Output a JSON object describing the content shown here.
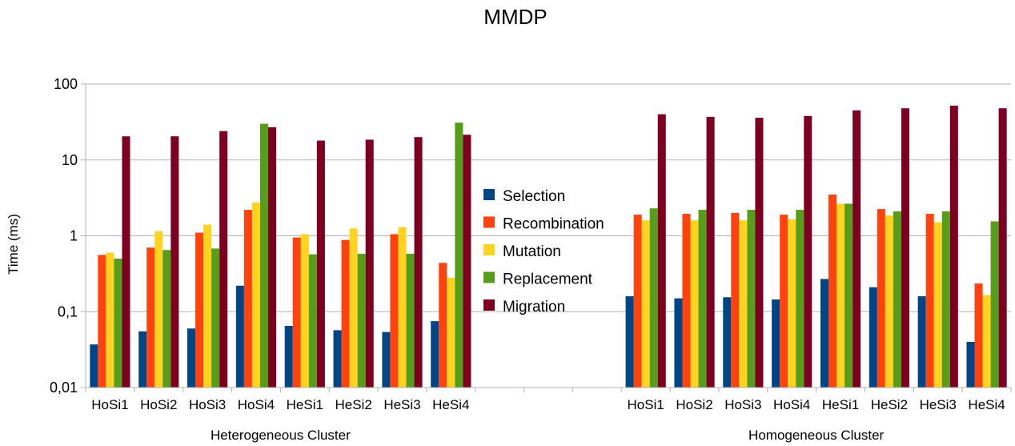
{
  "chart_data": {
    "type": "bar",
    "title": "MMDP",
    "ylabel": "Time (ms)",
    "xlabel": "",
    "y_scale": "log",
    "ylim": [
      0.01,
      100
    ],
    "y_ticks": [
      "0,01",
      "0,1",
      "1",
      "10",
      "100"
    ],
    "grid": "horizontal",
    "legend_position": "center",
    "groups": [
      {
        "label": "Heterogeneous Cluster",
        "categories": [
          "HoSi1",
          "HoSi2",
          "HoSi3",
          "HoSi4",
          "HeSi1",
          "HeSi2",
          "HeSi3",
          "HeSi4"
        ]
      },
      {
        "label": "Homogeneous Cluster",
        "categories": [
          "HoSi1",
          "HoSi2",
          "HoSi3",
          "HoSi4",
          "HeSi1",
          "HeSi2",
          "HeSi3",
          "HeSi4"
        ]
      }
    ],
    "series": [
      {
        "name": "Selection",
        "color": "#004586",
        "values": [
          0.037,
          0.055,
          0.06,
          0.22,
          0.065,
          0.057,
          0.054,
          0.075,
          0.16,
          0.15,
          0.155,
          0.145,
          0.27,
          0.21,
          0.16,
          0.04
        ]
      },
      {
        "name": "Recombination",
        "color": "#ff420e",
        "values": [
          0.56,
          0.7,
          1.1,
          2.2,
          0.95,
          0.88,
          1.05,
          0.44,
          1.9,
          1.95,
          2.0,
          1.9,
          3.5,
          2.25,
          1.95,
          0.235
        ]
      },
      {
        "name": "Mutation",
        "color": "#ffd320",
        "values": [
          0.6,
          1.15,
          1.4,
          2.75,
          1.05,
          1.25,
          1.3,
          0.28,
          1.6,
          1.6,
          1.6,
          1.65,
          2.65,
          1.85,
          1.5,
          0.165
        ]
      },
      {
        "name": "Replacement",
        "color": "#579d1c",
        "values": [
          0.5,
          0.65,
          0.68,
          30,
          0.57,
          0.58,
          0.58,
          31,
          2.3,
          2.2,
          2.2,
          2.2,
          2.65,
          2.1,
          2.1,
          1.55
        ]
      },
      {
        "name": "Migration",
        "color": "#7e0021",
        "values": [
          20.5,
          20.5,
          24,
          27,
          18,
          18.5,
          20,
          21.5,
          40,
          37,
          36,
          38,
          45,
          48,
          52,
          48
        ]
      }
    ]
  }
}
